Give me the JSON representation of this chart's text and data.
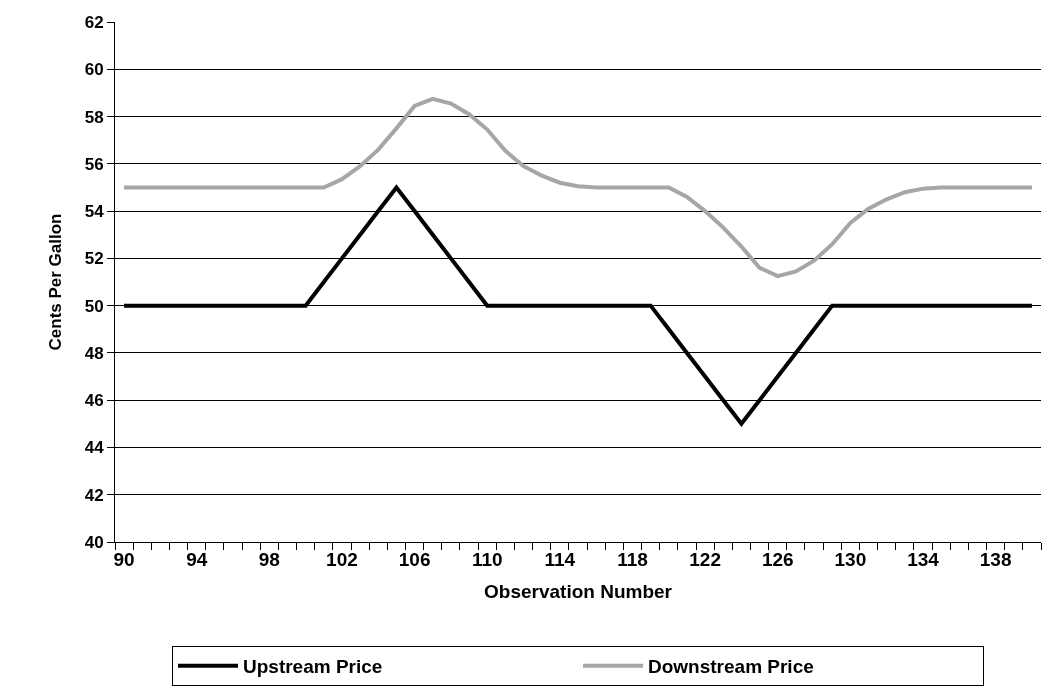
{
  "chart_data": {
    "type": "line",
    "xlabel": "Observation Number",
    "ylabel": "Cents Per Gallon",
    "categories": [
      "90",
      null,
      null,
      null,
      "94",
      null,
      null,
      null,
      "98",
      null,
      null,
      null,
      "102",
      null,
      null,
      null,
      "106",
      null,
      null,
      null,
      "110",
      null,
      null,
      null,
      "114",
      null,
      null,
      null,
      "118",
      null,
      null,
      null,
      "122",
      null,
      null,
      null,
      "126",
      null,
      null,
      null,
      "130",
      null,
      null,
      null,
      "134",
      null,
      null,
      null,
      "138",
      null,
      null
    ],
    "series": [
      {
        "name": "Upstream Price",
        "color": "#000000",
        "values": [
          50,
          50,
          50,
          50,
          50,
          50,
          50,
          50,
          50,
          50,
          50,
          51,
          52,
          53,
          54,
          55,
          54,
          53,
          52,
          51,
          50,
          50,
          50,
          50,
          50,
          50,
          50,
          50,
          50,
          50,
          49,
          48,
          47,
          46,
          45,
          46,
          47,
          48,
          49,
          50,
          50,
          50,
          50,
          50,
          50,
          50,
          50,
          50,
          50,
          50,
          50
        ]
      },
      {
        "name": "Downstream Price",
        "color": "#a6a6a6",
        "values": [
          55,
          55,
          55,
          55,
          55,
          55,
          55,
          55,
          55,
          55,
          55,
          55,
          55.35,
          55.9,
          56.6,
          57.5,
          58.45,
          58.75,
          58.55,
          58.1,
          57.45,
          56.55,
          55.9,
          55.5,
          55.2,
          55.05,
          55,
          55,
          55,
          55,
          55,
          54.6,
          54.0,
          53.3,
          52.5,
          51.6,
          51.25,
          51.45,
          51.9,
          52.6,
          53.5,
          54.1,
          54.5,
          54.8,
          54.95,
          55,
          55,
          55,
          55,
          55,
          55
        ]
      }
    ],
    "ylim": [
      40,
      62
    ],
    "yticks": [
      40,
      42,
      44,
      46,
      48,
      50,
      52,
      54,
      56,
      58,
      60,
      62
    ],
    "grid": "y",
    "legend": "bottom",
    "marker": "none",
    "line_style": "solid"
  }
}
